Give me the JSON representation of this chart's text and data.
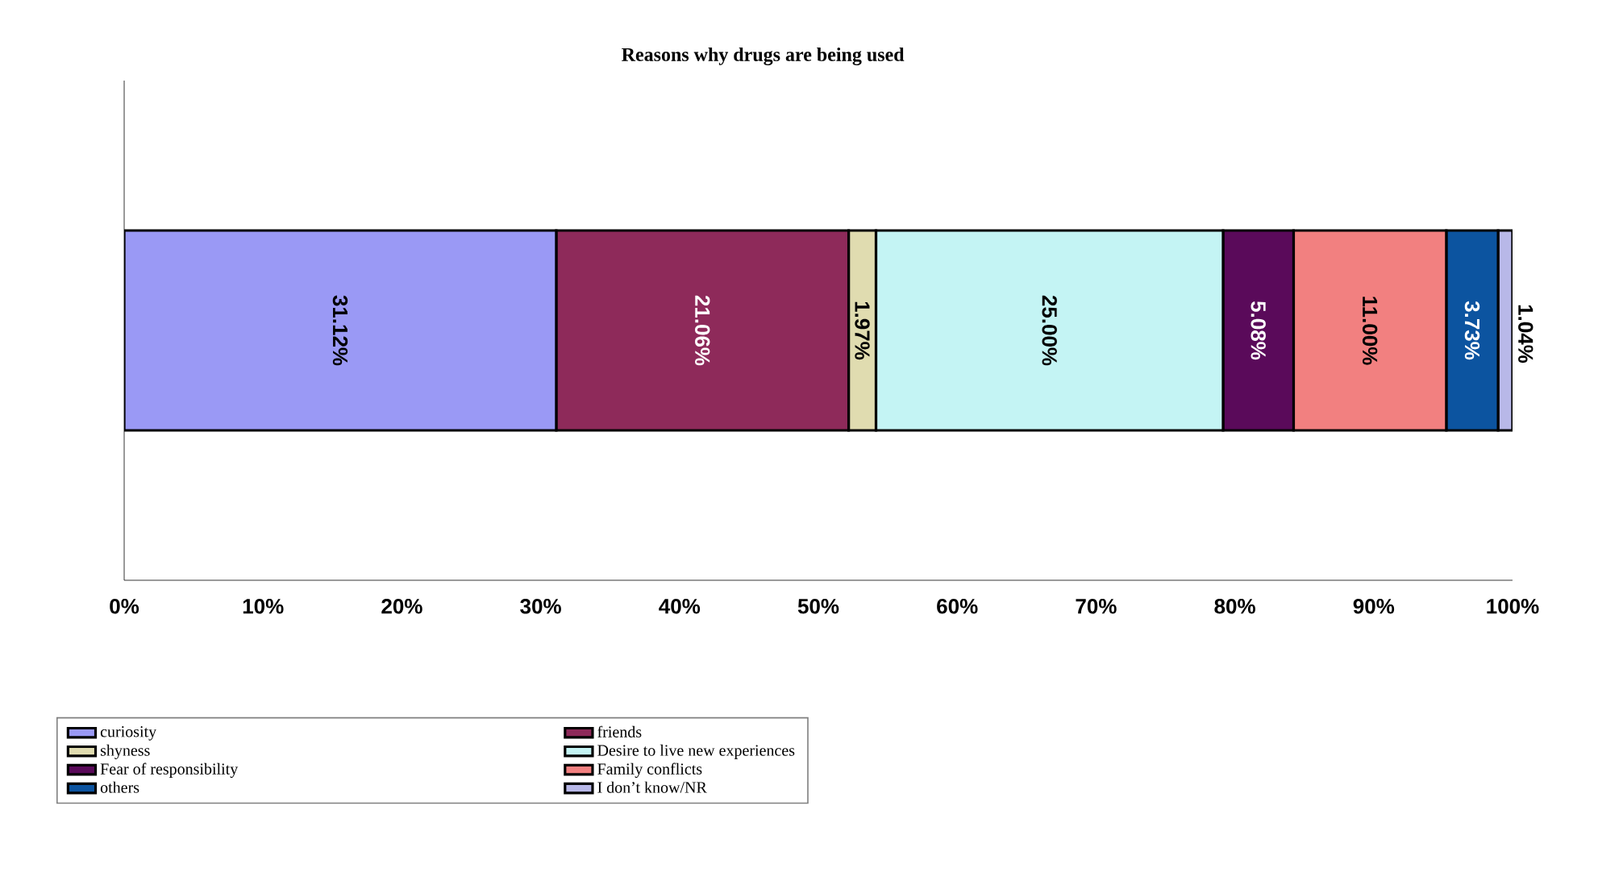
{
  "chart_data": {
    "type": "bar",
    "orientation": "horizontal",
    "stacked": true,
    "title": "Reasons why drugs are being used",
    "categories": [
      null
    ],
    "series": [
      {
        "name": "curiosity",
        "color": "#9a99f5",
        "values": [
          31.12
        ],
        "value_labels": [
          "31.12%"
        ]
      },
      {
        "name": "friends",
        "color": "#8e2a5a",
        "values": [
          21.06
        ],
        "value_labels": [
          "21.06%"
        ]
      },
      {
        "name": "shyness",
        "color": "#e0dcb0",
        "values": [
          1.97
        ],
        "value_labels": [
          "1.97%"
        ]
      },
      {
        "name": "Desire to live new experiences",
        "color": "#c4f4f4",
        "values": [
          25.0
        ],
        "value_labels": [
          "25.00%"
        ]
      },
      {
        "name": "Fear of responsibility",
        "color": "#5a0a5a",
        "values": [
          5.08
        ],
        "value_labels": [
          "5.08%"
        ]
      },
      {
        "name": "Family conflicts",
        "color": "#f28080",
        "values": [
          11.0
        ],
        "value_labels": [
          "11.00%"
        ]
      },
      {
        "name": "others",
        "color": "#0c54a0",
        "values": [
          3.73
        ],
        "value_labels": [
          "3.73%"
        ]
      },
      {
        "name": "I don’t know/NR",
        "color": "#b8b8e8",
        "values": [
          1.04
        ],
        "value_labels": [
          "1.04%"
        ]
      }
    ],
    "xlim": [
      0,
      100
    ],
    "xticks": [
      {
        "value": 0,
        "label": "0%"
      },
      {
        "value": 10,
        "label": "10%"
      },
      {
        "value": 20,
        "label": "20%"
      },
      {
        "value": 30,
        "label": "30%"
      },
      {
        "value": 40,
        "label": "40%"
      },
      {
        "value": 50,
        "label": "50%"
      },
      {
        "value": 60,
        "label": "60%"
      },
      {
        "value": 70,
        "label": "70%"
      },
      {
        "value": 80,
        "label": "80%"
      },
      {
        "value": 90,
        "label": "90%"
      },
      {
        "value": 100,
        "label": "100%"
      }
    ],
    "legend": "bottom",
    "grid": false
  }
}
